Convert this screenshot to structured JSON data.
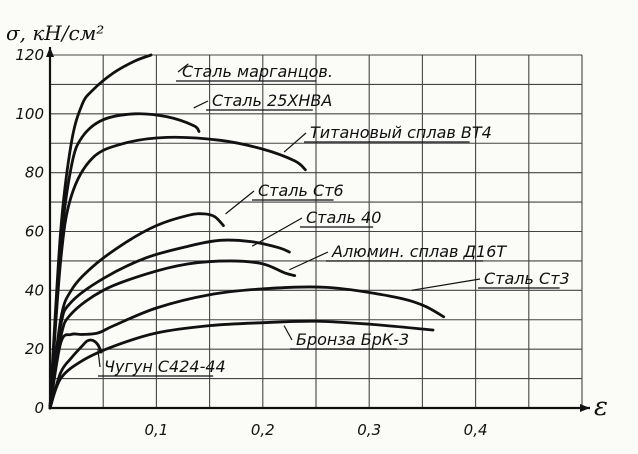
{
  "chart_data": {
    "type": "line",
    "title": "",
    "ylabel": "σ, кН/см²",
    "xlabel": "ε",
    "xlim": [
      0,
      0.5
    ],
    "ylim": [
      0,
      120
    ],
    "x_ticks": [
      "0,1",
      "0,2",
      "0,3",
      "0,4"
    ],
    "y_ticks": [
      "0",
      "20",
      "40",
      "60",
      "80",
      "100",
      "120"
    ],
    "grid": true,
    "series": [
      {
        "name": "Сталь марганцов.",
        "label_anchor": [
          0.13,
          117
        ],
        "points": [
          [
            0,
            0
          ],
          [
            0.01,
            60
          ],
          [
            0.02,
            90
          ],
          [
            0.03,
            103
          ],
          [
            0.04,
            108
          ],
          [
            0.06,
            114
          ],
          [
            0.08,
            118
          ],
          [
            0.095,
            120
          ]
        ]
      },
      {
        "name": "Сталь 25ХНВА",
        "label_anchor": [
          0.135,
          102
        ],
        "points": [
          [
            0,
            0
          ],
          [
            0.01,
            55
          ],
          [
            0.02,
            82
          ],
          [
            0.03,
            92
          ],
          [
            0.05,
            98
          ],
          [
            0.08,
            100
          ],
          [
            0.11,
            99
          ],
          [
            0.135,
            96
          ],
          [
            0.14,
            94
          ]
        ]
      },
      {
        "name": "Титановый сплав ВТ4",
        "label_anchor": [
          0.22,
          87
        ],
        "points": [
          [
            0,
            0
          ],
          [
            0.01,
            50
          ],
          [
            0.02,
            72
          ],
          [
            0.04,
            85
          ],
          [
            0.07,
            90
          ],
          [
            0.11,
            92
          ],
          [
            0.16,
            91
          ],
          [
            0.2,
            88
          ],
          [
            0.23,
            84
          ],
          [
            0.24,
            81
          ]
        ]
      },
      {
        "name": "Сталь Ст6",
        "label_anchor": [
          0.165,
          66
        ],
        "points": [
          [
            0,
            0
          ],
          [
            0.01,
            30
          ],
          [
            0.02,
            40
          ],
          [
            0.04,
            48
          ],
          [
            0.07,
            56
          ],
          [
            0.1,
            62
          ],
          [
            0.13,
            65.5
          ],
          [
            0.145,
            66
          ],
          [
            0.155,
            65
          ],
          [
            0.163,
            62
          ]
        ]
      },
      {
        "name": "Сталь 40",
        "label_anchor": [
          0.19,
          55
        ],
        "points": [
          [
            0,
            0
          ],
          [
            0.01,
            28
          ],
          [
            0.02,
            36
          ],
          [
            0.05,
            44
          ],
          [
            0.09,
            51
          ],
          [
            0.13,
            55
          ],
          [
            0.16,
            57
          ],
          [
            0.19,
            56.5
          ],
          [
            0.215,
            54.5
          ],
          [
            0.225,
            53
          ]
        ]
      },
      {
        "name": "Алюмин. сплав Д16Т",
        "label_anchor": [
          0.225,
          47
        ],
        "points": [
          [
            0,
            0
          ],
          [
            0.01,
            24
          ],
          [
            0.02,
            32
          ],
          [
            0.05,
            40
          ],
          [
            0.09,
            45.5
          ],
          [
            0.13,
            49
          ],
          [
            0.17,
            50
          ],
          [
            0.2,
            49
          ],
          [
            0.22,
            46
          ],
          [
            0.23,
            45
          ]
        ]
      },
      {
        "name": "Сталь Ст3",
        "label_anchor": [
          0.34,
          40
        ],
        "points": [
          [
            0,
            0
          ],
          [
            0.01,
            22
          ],
          [
            0.02,
            25
          ],
          [
            0.03,
            25
          ],
          [
            0.045,
            25.5
          ],
          [
            0.06,
            28
          ],
          [
            0.1,
            34
          ],
          [
            0.15,
            38.5
          ],
          [
            0.2,
            40.5
          ],
          [
            0.26,
            41
          ],
          [
            0.32,
            38
          ],
          [
            0.35,
            35
          ],
          [
            0.37,
            31
          ]
        ]
      },
      {
        "name": "Бронза БрК-3",
        "label_anchor": [
          0.22,
          28
        ],
        "points": [
          [
            0,
            0
          ],
          [
            0.01,
            10
          ],
          [
            0.03,
            16
          ],
          [
            0.06,
            21
          ],
          [
            0.1,
            25.5
          ],
          [
            0.15,
            28
          ],
          [
            0.2,
            29
          ],
          [
            0.25,
            29.5
          ],
          [
            0.3,
            28.5
          ],
          [
            0.36,
            26.5
          ]
        ]
      },
      {
        "name": "Чугун С424-44",
        "label_anchor": [
          0.045,
          20
        ],
        "points": [
          [
            0,
            0
          ],
          [
            0.01,
            12
          ],
          [
            0.02,
            17
          ],
          [
            0.03,
            21
          ],
          [
            0.035,
            22.8
          ],
          [
            0.04,
            23
          ],
          [
            0.045,
            21.5
          ],
          [
            0.048,
            19
          ]
        ]
      }
    ]
  }
}
